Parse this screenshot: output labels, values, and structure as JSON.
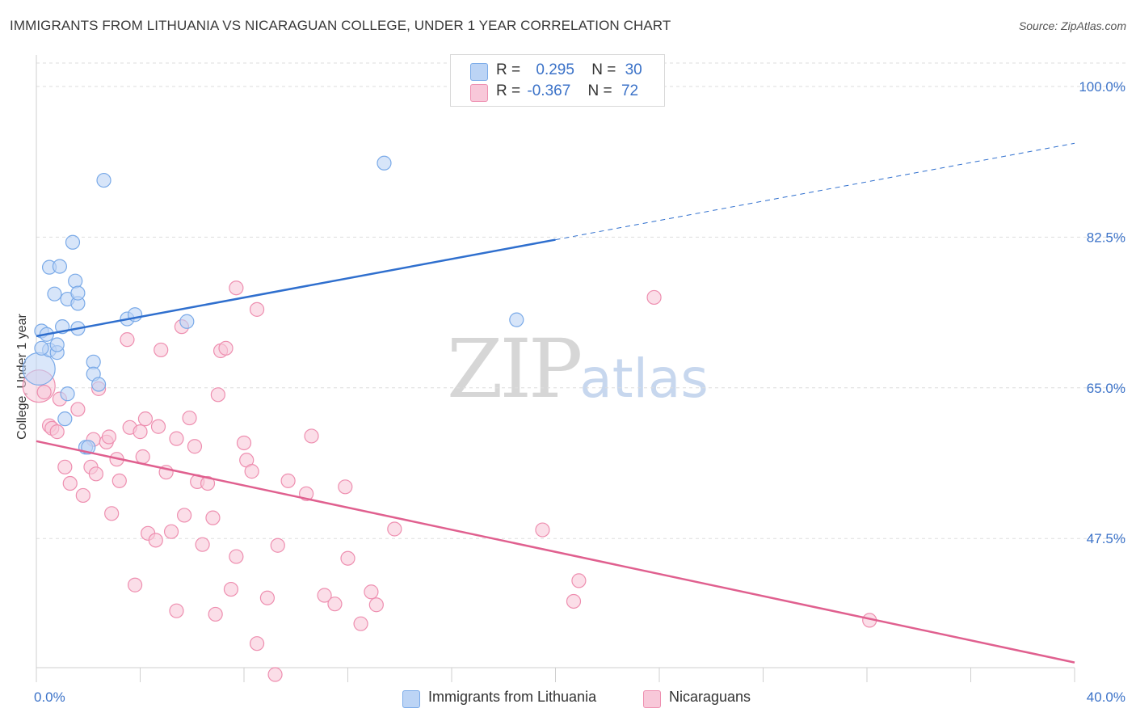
{
  "title": "IMMIGRANTS FROM LITHUANIA VS NICARAGUAN COLLEGE, UNDER 1 YEAR CORRELATION CHART",
  "source": "Source: ZipAtlas.com",
  "legend": {
    "series1": {
      "r_label": "R =",
      "r_value": "0.295",
      "n_label": "N =",
      "n_value": "30"
    },
    "series2": {
      "r_label": "R =",
      "r_value": "-0.367",
      "n_label": "N =",
      "n_value": "72"
    }
  },
  "colors": {
    "blue": "#7aaae8",
    "blue_fill": "#bcd4f5",
    "blue_line": "#2f6fce",
    "pink": "#ee8fb0",
    "pink_fill": "#f8c8d9",
    "pink_line": "#e0608f",
    "tick_text": "#3b72c8",
    "grid": "#dddddd"
  },
  "watermark": {
    "zip": "ZIP",
    "atlas": "atlas"
  },
  "chart_data": {
    "type": "scatter",
    "title": "IMMIGRANTS FROM LITHUANIA VS NICARAGUAN COLLEGE, UNDER 1 YEAR CORRELATION CHART",
    "xlabel": "",
    "ylabel": "College, Under 1 year",
    "xlim": [
      0,
      40
    ],
    "ylim": [
      32.5,
      103
    ],
    "x_tick_labels": [
      "0.0%",
      "40.0%"
    ],
    "y_ticks": [
      {
        "value": 100,
        "label": "100.0%"
      },
      {
        "value": 82.5,
        "label": "82.5%"
      },
      {
        "value": 65,
        "label": "65.0%"
      },
      {
        "value": 47.5,
        "label": "47.5%"
      }
    ],
    "grid": true,
    "series": [
      {
        "name": "Immigrants from Lithuania",
        "color": "#7aaae8",
        "trend": {
          "x_start": 0,
          "y_start": 71.0,
          "x_solid_end": 20,
          "y_solid_end": 82.2,
          "x_end": 40,
          "y_end": 93.4
        },
        "points": [
          {
            "x": 0.1,
            "y": 67.2,
            "big": true
          },
          {
            "x": 0.2,
            "y": 71.6
          },
          {
            "x": 0.4,
            "y": 71.2
          },
          {
            "x": 0.5,
            "y": 79.0
          },
          {
            "x": 0.5,
            "y": 69.4
          },
          {
            "x": 0.7,
            "y": 75.9
          },
          {
            "x": 0.8,
            "y": 69.1
          },
          {
            "x": 0.8,
            "y": 70.0
          },
          {
            "x": 0.9,
            "y": 79.1
          },
          {
            "x": 1.0,
            "y": 72.1
          },
          {
            "x": 1.1,
            "y": 61.4
          },
          {
            "x": 1.2,
            "y": 64.3
          },
          {
            "x": 1.2,
            "y": 75.3
          },
          {
            "x": 1.4,
            "y": 81.9
          },
          {
            "x": 1.5,
            "y": 77.4
          },
          {
            "x": 1.6,
            "y": 74.8
          },
          {
            "x": 1.6,
            "y": 71.9
          },
          {
            "x": 1.6,
            "y": 76.0
          },
          {
            "x": 1.9,
            "y": 58.1
          },
          {
            "x": 2.2,
            "y": 68.0
          },
          {
            "x": 2.2,
            "y": 66.6
          },
          {
            "x": 2.4,
            "y": 65.4
          },
          {
            "x": 2.6,
            "y": 89.1
          },
          {
            "x": 3.5,
            "y": 73.0
          },
          {
            "x": 3.8,
            "y": 73.5
          },
          {
            "x": 5.8,
            "y": 72.7
          },
          {
            "x": 13.4,
            "y": 91.1
          },
          {
            "x": 18.5,
            "y": 72.9
          },
          {
            "x": 2.0,
            "y": 58.1
          },
          {
            "x": 0.2,
            "y": 69.6
          }
        ]
      },
      {
        "name": "Nicaraguans",
        "color": "#ee8fb0",
        "trend": {
          "x_start": 0,
          "y_start": 58.8,
          "x_end": 40,
          "y_end": 33.1
        },
        "points": [
          {
            "x": 0.1,
            "y": 65.2,
            "big": true
          },
          {
            "x": 0.3,
            "y": 64.5
          },
          {
            "x": 0.5,
            "y": 60.6
          },
          {
            "x": 0.6,
            "y": 60.3
          },
          {
            "x": 0.8,
            "y": 59.9
          },
          {
            "x": 0.9,
            "y": 63.7
          },
          {
            "x": 1.1,
            "y": 55.8
          },
          {
            "x": 1.3,
            "y": 53.9
          },
          {
            "x": 1.6,
            "y": 62.5
          },
          {
            "x": 1.8,
            "y": 52.5
          },
          {
            "x": 2.2,
            "y": 59.0
          },
          {
            "x": 2.1,
            "y": 55.8
          },
          {
            "x": 2.3,
            "y": 55.0
          },
          {
            "x": 2.4,
            "y": 64.9
          },
          {
            "x": 2.7,
            "y": 58.7
          },
          {
            "x": 2.8,
            "y": 59.3
          },
          {
            "x": 2.9,
            "y": 50.4
          },
          {
            "x": 3.1,
            "y": 56.7
          },
          {
            "x": 3.2,
            "y": 54.2
          },
          {
            "x": 3.5,
            "y": 70.6
          },
          {
            "x": 3.6,
            "y": 60.4
          },
          {
            "x": 3.8,
            "y": 42.1
          },
          {
            "x": 4.0,
            "y": 59.9
          },
          {
            "x": 4.1,
            "y": 57.0
          },
          {
            "x": 4.2,
            "y": 61.4
          },
          {
            "x": 4.3,
            "y": 48.1
          },
          {
            "x": 4.6,
            "y": 47.3
          },
          {
            "x": 4.7,
            "y": 60.5
          },
          {
            "x": 4.8,
            "y": 69.4
          },
          {
            "x": 5.0,
            "y": 55.2
          },
          {
            "x": 5.2,
            "y": 48.3
          },
          {
            "x": 5.4,
            "y": 39.1
          },
          {
            "x": 5.6,
            "y": 72.1
          },
          {
            "x": 5.7,
            "y": 50.2
          },
          {
            "x": 5.9,
            "y": 61.5
          },
          {
            "x": 6.1,
            "y": 58.2
          },
          {
            "x": 6.2,
            "y": 54.1
          },
          {
            "x": 6.4,
            "y": 46.8
          },
          {
            "x": 6.6,
            "y": 53.9
          },
          {
            "x": 6.8,
            "y": 49.9
          },
          {
            "x": 6.9,
            "y": 38.7
          },
          {
            "x": 7.0,
            "y": 64.2
          },
          {
            "x": 7.1,
            "y": 69.3
          },
          {
            "x": 7.3,
            "y": 69.6
          },
          {
            "x": 7.5,
            "y": 41.6
          },
          {
            "x": 7.7,
            "y": 45.4
          },
          {
            "x": 7.7,
            "y": 76.6
          },
          {
            "x": 8.0,
            "y": 58.6
          },
          {
            "x": 8.1,
            "y": 56.6
          },
          {
            "x": 8.3,
            "y": 55.3
          },
          {
            "x": 8.5,
            "y": 74.1
          },
          {
            "x": 8.5,
            "y": 35.3
          },
          {
            "x": 8.9,
            "y": 40.6
          },
          {
            "x": 9.2,
            "y": 31.7
          },
          {
            "x": 9.3,
            "y": 46.7
          },
          {
            "x": 9.7,
            "y": 54.2
          },
          {
            "x": 10.4,
            "y": 52.7
          },
          {
            "x": 10.6,
            "y": 59.4
          },
          {
            "x": 11.1,
            "y": 40.9
          },
          {
            "x": 11.5,
            "y": 39.9
          },
          {
            "x": 11.9,
            "y": 53.5
          },
          {
            "x": 12.0,
            "y": 45.2
          },
          {
            "x": 12.5,
            "y": 37.6
          },
          {
            "x": 12.9,
            "y": 41.3
          },
          {
            "x": 13.1,
            "y": 39.8
          },
          {
            "x": 13.8,
            "y": 48.6
          },
          {
            "x": 19.5,
            "y": 48.5
          },
          {
            "x": 20.7,
            "y": 40.2
          },
          {
            "x": 20.9,
            "y": 42.6
          },
          {
            "x": 23.8,
            "y": 75.5
          },
          {
            "x": 32.1,
            "y": 38.0
          },
          {
            "x": 5.4,
            "y": 59.1
          }
        ]
      }
    ]
  },
  "bottom_legend": {
    "series1": "Immigrants from Lithuania",
    "series2": "Nicaraguans"
  }
}
